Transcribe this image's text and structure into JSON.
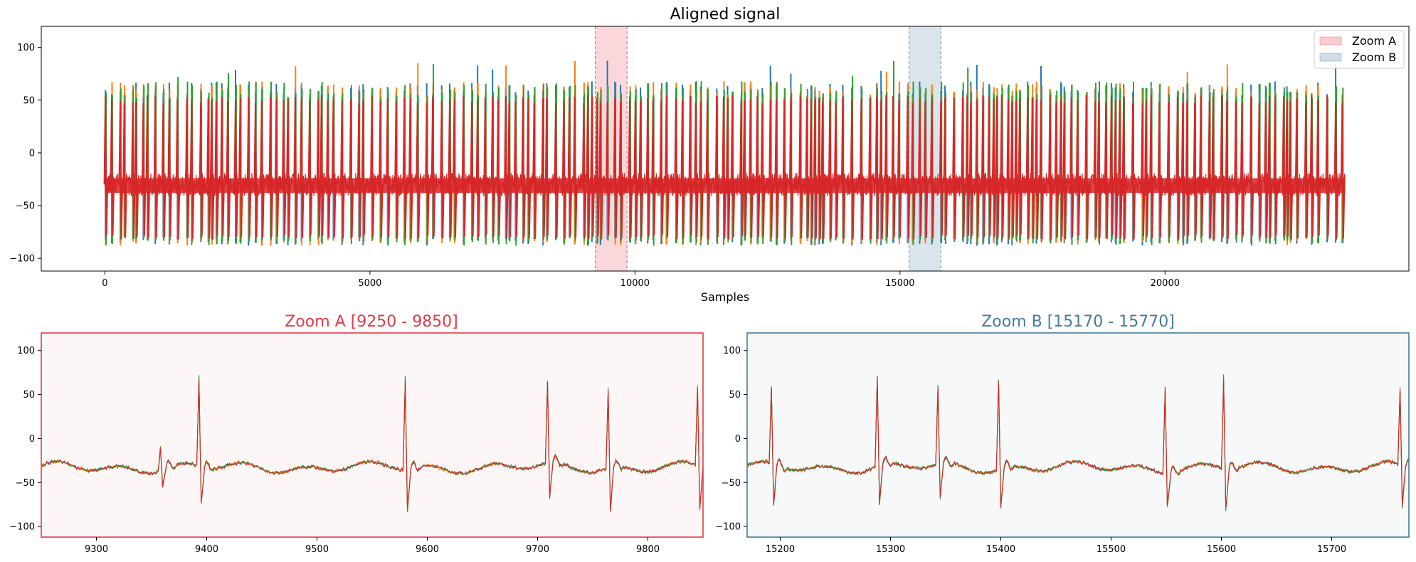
{
  "chart_data": [
    {
      "type": "line",
      "title": "Aligned signal",
      "xlabel": "Samples",
      "ylabel": "",
      "xlim": [
        -1200,
        24600
      ],
      "ylim": [
        -112,
        120
      ],
      "xticks": [
        0,
        5000,
        10000,
        15000,
        20000
      ],
      "yticks": [
        -100,
        -50,
        0,
        50,
        100
      ],
      "grid": false,
      "legend_position": "top-right",
      "legend": [
        {
          "name": "Zoom A",
          "color": "#f4a6ae"
        },
        {
          "name": "Zoom B",
          "color": "#a9bfd2"
        }
      ],
      "highlight_regions": [
        {
          "name": "Zoom A",
          "start": 9250,
          "end": 9850,
          "color": "#e63946"
        },
        {
          "name": "Zoom B",
          "start": 15170,
          "end": 15770,
          "color": "#457b9d"
        }
      ],
      "series_colors": [
        "#1f77b4",
        "#ff7f0e",
        "#2ca02c",
        "#d62728"
      ],
      "baseline": -30,
      "spike_high_typical": [
        50,
        65
      ],
      "spike_low_typical": [
        -85,
        -78
      ],
      "x_range": [
        0,
        23400
      ]
    },
    {
      "type": "line",
      "title": "Zoom A  [9250 - 9850]",
      "title_color": "#e63946",
      "xlim": [
        9250,
        9850
      ],
      "ylim": [
        -112,
        120
      ],
      "xticks": [
        9300,
        9400,
        9500,
        9600,
        9700,
        9800
      ],
      "yticks": [
        -100,
        -50,
        0,
        50,
        100
      ],
      "grid": false,
      "series_colors": [
        "#1f77b4",
        "#ff7f0e",
        "#2ca02c",
        "#d62728"
      ],
      "baseline": -33,
      "spikes": [
        {
          "x": 9358,
          "peak": -6,
          "trough": -52
        },
        {
          "x": 9393,
          "peak": 68,
          "trough": -76
        },
        {
          "x": 9580,
          "peak": 70,
          "trough": -80
        },
        {
          "x": 9709,
          "peak": 58,
          "trough": -72
        },
        {
          "x": 9764,
          "peak": 55,
          "trough": -82
        },
        {
          "x": 9845,
          "peak": 55,
          "trough": -82
        }
      ]
    },
    {
      "type": "line",
      "title": "Zoom B  [15170 - 15770]",
      "title_color": "#457b9d",
      "xlim": [
        15170,
        15770
      ],
      "ylim": [
        -112,
        120
      ],
      "xticks": [
        15200,
        15300,
        15400,
        15500,
        15600,
        15700
      ],
      "yticks": [
        -100,
        -50,
        0,
        50,
        100
      ],
      "grid": false,
      "series_colors": [
        "#1f77b4",
        "#ff7f0e",
        "#2ca02c",
        "#d62728"
      ],
      "baseline": -33,
      "spikes": [
        {
          "x": 15192,
          "peak": 52,
          "trough": -82
        },
        {
          "x": 15288,
          "peak": 68,
          "trough": -78
        },
        {
          "x": 15343,
          "peak": 54,
          "trough": -72
        },
        {
          "x": 15398,
          "peak": 66,
          "trough": -78
        },
        {
          "x": 15549,
          "peak": 64,
          "trough": -72
        },
        {
          "x": 15602,
          "peak": 68,
          "trough": -80
        },
        {
          "x": 15762,
          "peak": 53,
          "trough": -80
        }
      ]
    }
  ]
}
